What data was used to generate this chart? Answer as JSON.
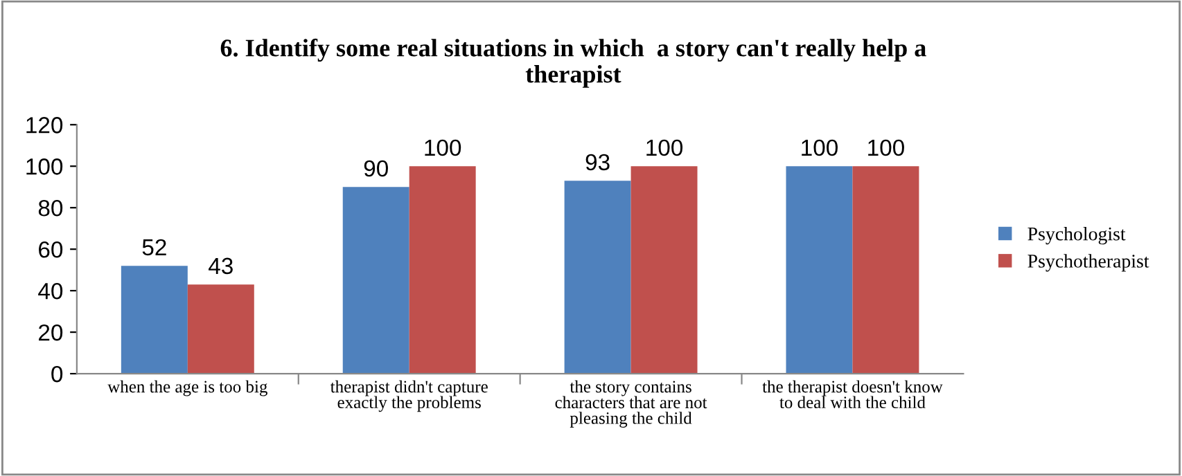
{
  "chart_data": {
    "type": "bar",
    "title": "6. Identify some real situations in which  a story can't really help a\ntherapist",
    "categories": [
      "when the age is too big",
      "therapist didn't capture\nexactly the problems",
      "the story contains\ncharacters that are not\npleasing the child",
      "the therapist doesn't know\nto deal with the child"
    ],
    "series": [
      {
        "name": "Psychologist",
        "color": "#4f81bd",
        "values": [
          52,
          90,
          93,
          100
        ]
      },
      {
        "name": "Psychotherapist",
        "color": "#c0504d",
        "values": [
          43,
          100,
          100,
          100
        ]
      }
    ],
    "ylim": [
      0,
      120
    ],
    "yticks": [
      0,
      20,
      40,
      60,
      80,
      100,
      120
    ],
    "grid": false,
    "legend": "right",
    "data_labels": true
  }
}
